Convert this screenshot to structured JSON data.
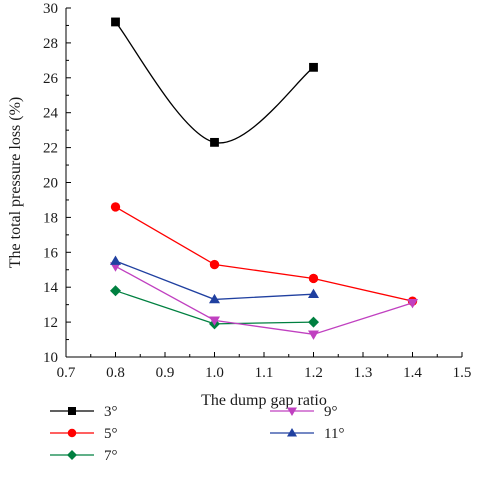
{
  "chart_data": {
    "type": "line",
    "xlabel": "The dump gap ratio",
    "ylabel": "The total pressure loss (%)",
    "xlim": [
      0.7,
      1.5
    ],
    "ylim": [
      10,
      30
    ],
    "xticks": [
      0.7,
      0.8,
      0.9,
      1.0,
      1.1,
      1.2,
      1.3,
      1.4,
      1.5
    ],
    "xtick_labels": [
      "0.7",
      "0.8",
      "0.9",
      "1.0",
      "1.1",
      "1.2",
      "1.3",
      "1.4",
      "1.5"
    ],
    "yticks": [
      10,
      12,
      14,
      16,
      18,
      20,
      22,
      24,
      26,
      28,
      30
    ],
    "ytick_labels": [
      "10",
      "12",
      "14",
      "16",
      "18",
      "20",
      "22",
      "24",
      "26",
      "28",
      "30"
    ],
    "grid": false,
    "legend_position": "bottom",
    "series": [
      {
        "name": "3°",
        "color": "#000000",
        "marker": "square",
        "smooth": true,
        "x": [
          0.8,
          1.0,
          1.2
        ],
        "y": [
          29.2,
          22.3,
          26.6
        ]
      },
      {
        "name": "5°",
        "color": "#ff0000",
        "marker": "circle",
        "smooth": false,
        "x": [
          0.8,
          1.0,
          1.2,
          1.4
        ],
        "y": [
          18.6,
          15.3,
          14.5,
          13.2
        ]
      },
      {
        "name": "7°",
        "color": "#008040",
        "marker": "diamond",
        "smooth": false,
        "x": [
          0.8,
          1.0,
          1.2
        ],
        "y": [
          13.8,
          11.9,
          12.0
        ]
      },
      {
        "name": "9°",
        "color": "#c040c0",
        "marker": "triangle-down",
        "smooth": false,
        "x": [
          0.8,
          1.0,
          1.2,
          1.4
        ],
        "y": [
          15.2,
          12.1,
          11.3,
          13.1
        ]
      },
      {
        "name": "11°",
        "color": "#2040a0",
        "marker": "triangle-up",
        "smooth": false,
        "x": [
          0.8,
          1.0,
          1.2
        ],
        "y": [
          15.5,
          13.3,
          13.6
        ]
      }
    ]
  }
}
